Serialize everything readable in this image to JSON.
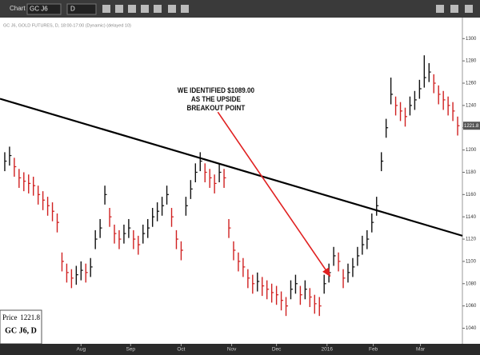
{
  "toolbar": {
    "window_title": "Chart",
    "symbol": "GC J6",
    "interval": "D"
  },
  "chart_data": {
    "type": "ohlc",
    "header": "GC J6, GOLD FUTURES, D, 18:00-17:00 (Dynamic) (delayed 10)",
    "up_color": "#111111",
    "down_color": "#d02020",
    "high": [
      1198,
      1203,
      1193,
      1183,
      1180,
      1178,
      1176,
      1168,
      1163,
      1158,
      1153,
      1143,
      1108,
      1098,
      1093,
      1096,
      1100,
      1098,
      1103,
      1128,
      1138,
      1168,
      1148,
      1133,
      1128,
      1133,
      1138,
      1128,
      1123,
      1133,
      1138,
      1148,
      1153,
      1158,
      1168,
      1148,
      1128,
      1118,
      1158,
      1173,
      1188,
      1198,
      1188,
      1183,
      1178,
      1188,
      1183,
      1138,
      1118,
      1108,
      1103,
      1093,
      1088,
      1090,
      1086,
      1083,
      1080,
      1078,
      1073,
      1068,
      1083,
      1088,
      1078,
      1083,
      1076,
      1070,
      1068,
      1088,
      1098,
      1113,
      1108,
      1093,
      1098,
      1103,
      1113,
      1123,
      1128,
      1143,
      1158,
      1198,
      1228,
      1265,
      1248,
      1243,
      1238,
      1248,
      1253,
      1263,
      1285,
      1278,
      1268,
      1258,
      1253,
      1248,
      1243,
      1230
    ],
    "low": [
      1181,
      1186,
      1176,
      1166,
      1163,
      1161,
      1159,
      1151,
      1146,
      1141,
      1136,
      1126,
      1091,
      1081,
      1076,
      1079,
      1083,
      1081,
      1086,
      1111,
      1121,
      1151,
      1131,
      1116,
      1111,
      1116,
      1121,
      1111,
      1106,
      1116,
      1121,
      1131,
      1136,
      1141,
      1151,
      1131,
      1111,
      1101,
      1141,
      1156,
      1171,
      1181,
      1171,
      1166,
      1161,
      1171,
      1166,
      1121,
      1101,
      1091,
      1086,
      1076,
      1071,
      1073,
      1069,
      1066,
      1063,
      1061,
      1056,
      1051,
      1066,
      1071,
      1061,
      1066,
      1059,
      1053,
      1051,
      1071,
      1081,
      1096,
      1091,
      1076,
      1081,
      1086,
      1096,
      1106,
      1111,
      1126,
      1141,
      1181,
      1211,
      1241,
      1231,
      1226,
      1221,
      1231,
      1236,
      1246,
      1256,
      1261,
      1251,
      1241,
      1236,
      1231,
      1226,
      1213
    ],
    "close": [
      1190,
      1195,
      1185,
      1175,
      1172,
      1170,
      1168,
      1160,
      1155,
      1150,
      1145,
      1135,
      1100,
      1090,
      1085,
      1088,
      1092,
      1090,
      1095,
      1120,
      1130,
      1160,
      1140,
      1125,
      1120,
      1125,
      1130,
      1120,
      1115,
      1125,
      1130,
      1140,
      1145,
      1150,
      1160,
      1140,
      1120,
      1110,
      1150,
      1165,
      1180,
      1190,
      1180,
      1175,
      1170,
      1180,
      1175,
      1130,
      1110,
      1100,
      1095,
      1085,
      1080,
      1082,
      1078,
      1075,
      1072,
      1070,
      1065,
      1060,
      1075,
      1080,
      1070,
      1075,
      1068,
      1062,
      1060,
      1080,
      1090,
      1105,
      1100,
      1085,
      1090,
      1095,
      1105,
      1115,
      1120,
      1135,
      1150,
      1190,
      1220,
      1250,
      1240,
      1235,
      1230,
      1240,
      1245,
      1255,
      1265,
      1270,
      1260,
      1250,
      1245,
      1240,
      1235,
      1221.8
    ],
    "xlim": [
      -1,
      96
    ],
    "xticks": [
      {
        "value": 16,
        "label": "Aug"
      },
      {
        "value": 26.4,
        "label": "Sep"
      },
      {
        "value": 37,
        "label": "Oct"
      },
      {
        "value": 47.6,
        "label": "Nov"
      },
      {
        "value": 57,
        "label": "Dec"
      },
      {
        "value": 67.6,
        "label": "2016"
      },
      {
        "value": 77.3,
        "label": "Feb"
      },
      {
        "value": 87.2,
        "label": "Mar"
      }
    ],
    "ylim": [
      1026,
      1316
    ],
    "yticks": [
      1040,
      1060,
      1080,
      1100,
      1120,
      1140,
      1160,
      1180,
      1200,
      1220,
      1240,
      1260,
      1280,
      1300
    ],
    "last_price": 1221.8,
    "trendline": {
      "x": [
        -1,
        96
      ],
      "y": [
        1246,
        1123
      ],
      "color": "#000000"
    },
    "annotation": {
      "lines": [
        "WE IDENTIFIED $1089.00",
        "AS THE UPSIDE",
        "BREAKOUT POINT"
      ],
      "x": 44.3,
      "y": 1253
    },
    "arrow": {
      "x": [
        44.7,
        68.2
      ],
      "y": [
        1234,
        1087
      ],
      "color": "#e02020"
    },
    "data_window": {
      "price_label": "Price",
      "price": "1221.8",
      "symbol": "GC J6, D"
    }
  }
}
